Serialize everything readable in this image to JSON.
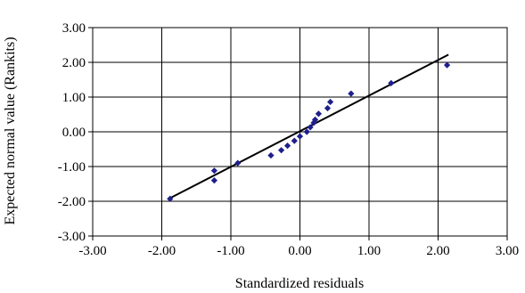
{
  "chart_data": {
    "type": "scatter",
    "title": "",
    "xlabel": "Standardized residuals",
    "ylabel": "Expected normal value (Rankits)",
    "xlim": [
      -3,
      3
    ],
    "ylim": [
      -3,
      3
    ],
    "x_ticks": [
      "-3.00",
      "-2.00",
      "-1.00",
      "0.00",
      "1.00",
      "2.00",
      "3.00"
    ],
    "y_ticks": [
      "3.00",
      "2.00",
      "1.00",
      "0.00",
      "-1.00",
      "-2.00",
      "-3.00"
    ],
    "grid": true,
    "legend": "none",
    "colors": {
      "points": "#1f1f8c",
      "line": "#000000",
      "grid": "#000000"
    },
    "points": [
      {
        "x": -1.88,
        "y": -1.93
      },
      {
        "x": -1.24,
        "y": -1.12
      },
      {
        "x": -1.24,
        "y": -1.4
      },
      {
        "x": -0.9,
        "y": -0.9
      },
      {
        "x": -0.42,
        "y": -0.68
      },
      {
        "x": -0.27,
        "y": -0.53
      },
      {
        "x": -0.18,
        "y": -0.4
      },
      {
        "x": -0.08,
        "y": -0.26
      },
      {
        "x": 0.0,
        "y": -0.13
      },
      {
        "x": 0.1,
        "y": 0.0
      },
      {
        "x": 0.15,
        "y": 0.13
      },
      {
        "x": 0.2,
        "y": 0.26
      },
      {
        "x": 0.22,
        "y": 0.35
      },
      {
        "x": 0.27,
        "y": 0.52
      },
      {
        "x": 0.4,
        "y": 0.68
      },
      {
        "x": 0.44,
        "y": 0.86
      },
      {
        "x": 0.74,
        "y": 1.1
      },
      {
        "x": 1.32,
        "y": 1.4
      },
      {
        "x": 2.13,
        "y": 1.92
      }
    ],
    "fit_line": {
      "x": [
        -1.9,
        2.15
      ],
      "y": [
        -1.93,
        2.22
      ]
    }
  }
}
